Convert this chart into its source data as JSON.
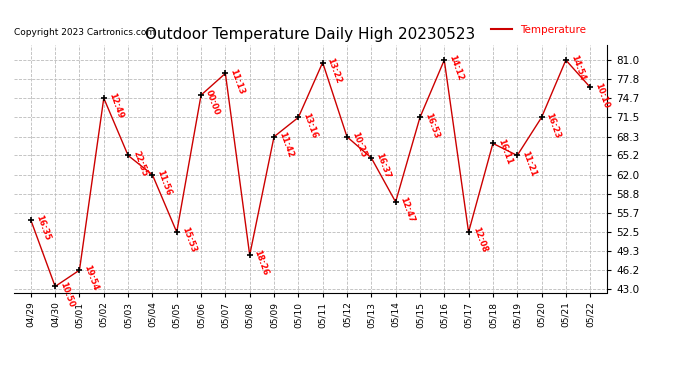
{
  "title": "Outdoor Temperature Daily High 20230523",
  "copyright": "Copyright 2023 Cartronics.com",
  "legend_label": "Temperature",
  "x_labels": [
    "04/29",
    "04/30",
    "05/01",
    "05/02",
    "05/03",
    "05/04",
    "05/05",
    "05/06",
    "05/07",
    "05/08",
    "05/09",
    "05/10",
    "05/11",
    "05/12",
    "05/13",
    "05/14",
    "05/15",
    "05/16",
    "05/17",
    "05/18",
    "05/19",
    "05/20",
    "05/21",
    "05/22"
  ],
  "y_values": [
    54.5,
    43.5,
    46.2,
    74.7,
    65.2,
    62.0,
    52.5,
    75.2,
    78.8,
    48.7,
    68.3,
    71.5,
    80.6,
    68.3,
    64.8,
    57.5,
    71.5,
    81.0,
    52.5,
    67.2,
    65.2,
    71.5,
    81.0,
    76.5
  ],
  "time_labels": [
    "16:35",
    "10:50",
    "19:54",
    "12:49",
    "22:55",
    "11:56",
    "15:53",
    "00:00",
    "11:13",
    "18:26",
    "11:42",
    "13:16",
    "13:22",
    "10:25",
    "16:37",
    "12:47",
    "16:53",
    "14:12",
    "12:08",
    "16:11",
    "11:21",
    "16:23",
    "14:54",
    "10:10"
  ],
  "y_min": 43.0,
  "y_max": 81.0,
  "y_ticks": [
    43.0,
    46.2,
    49.3,
    52.5,
    55.7,
    58.8,
    62.0,
    65.2,
    68.3,
    71.5,
    74.7,
    77.8,
    81.0
  ],
  "line_color": "#cc0000",
  "marker_color": "black",
  "title_color": "black",
  "label_color": "red",
  "copyright_color": "black",
  "legend_text_color": "red",
  "background_color": "white",
  "grid_color": "#bbbbbb",
  "figwidth": 6.9,
  "figheight": 3.75,
  "dpi": 100
}
